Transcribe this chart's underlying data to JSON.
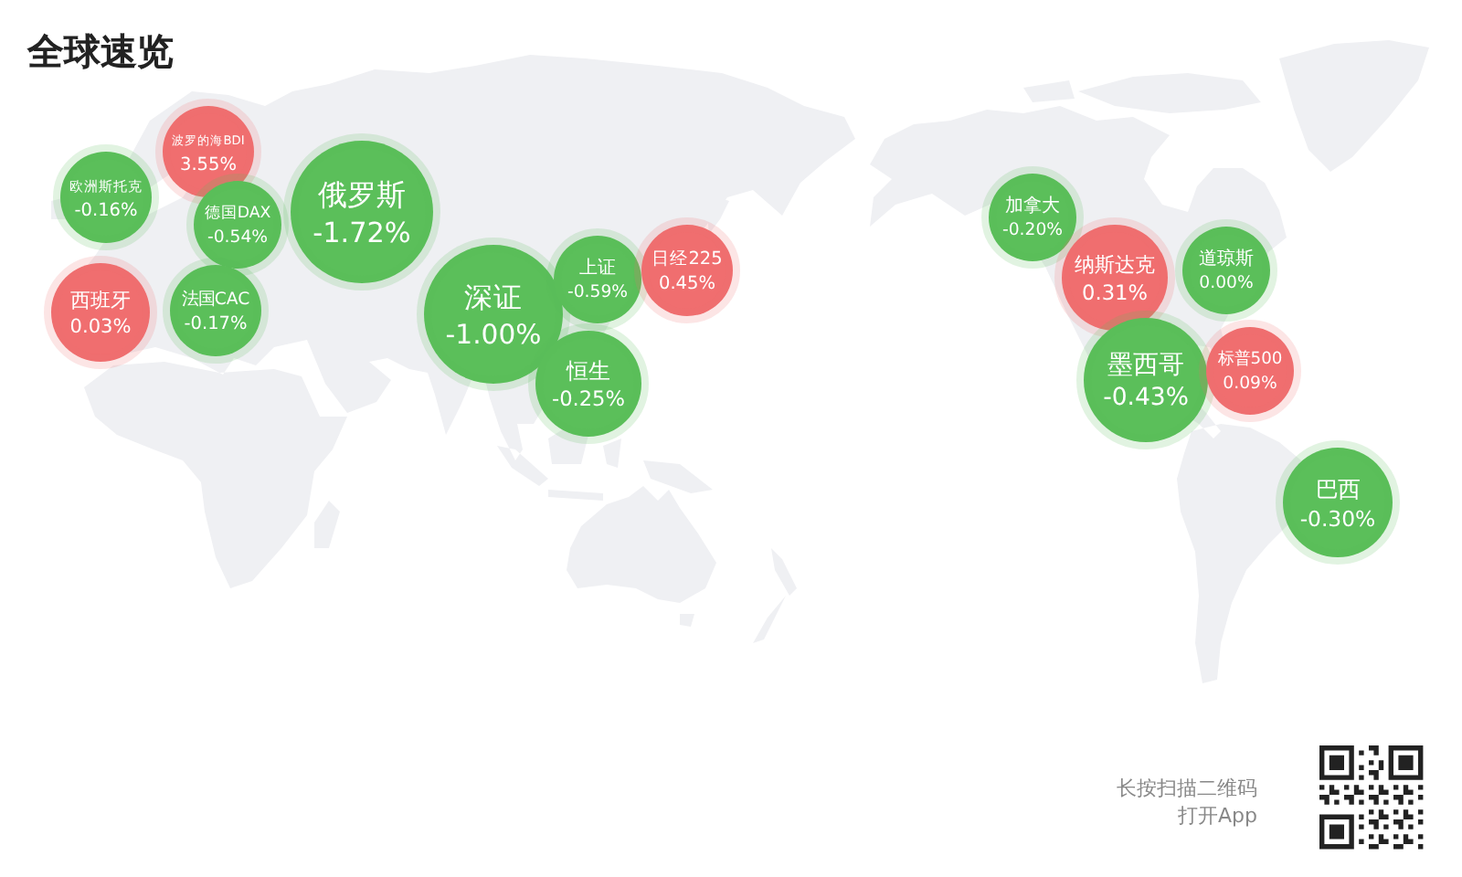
{
  "chart_data": {
    "type": "other",
    "title": "全球速览",
    "categories": [
      "欧洲斯托克",
      "波罗的海BDI",
      "德国DAX",
      "俄罗斯",
      "西班牙",
      "法国CAC",
      "深证",
      "上证",
      "恒生",
      "日经225",
      "加拿大",
      "纳斯达克",
      "道琼斯",
      "墨西哥",
      "标普500",
      "巴西"
    ],
    "values": [
      -0.16,
      3.55,
      -0.54,
      -1.72,
      0.03,
      -0.17,
      -1.0,
      -0.59,
      -0.25,
      0.45,
      -0.2,
      0.31,
      0.0,
      -0.43,
      0.09,
      -0.3
    ],
    "value_labels": [
      "-0.16%",
      "3.55%",
      "-0.54%",
      "-1.72%",
      "0.03%",
      "-0.17%",
      "-1.00%",
      "-0.59%",
      "-0.25%",
      "0.45%",
      "-0.20%",
      "0.31%",
      "0.00%",
      "-0.43%",
      "0.09%",
      "-0.30%"
    ],
    "colors": [
      "#5bbf5a",
      "#f06e6f",
      "#5bbf5a",
      "#5bbf5a",
      "#f06e6f",
      "#5bbf5a",
      "#5bbf5a",
      "#5bbf5a",
      "#5bbf5a",
      "#f06e6f",
      "#5bbf5a",
      "#f06e6f",
      "#5bbf5a",
      "#5bbf5a",
      "#f06e6f",
      "#5bbf5a"
    ],
    "annotations": [
      "长按扫描二维码",
      "打开App"
    ]
  }
}
